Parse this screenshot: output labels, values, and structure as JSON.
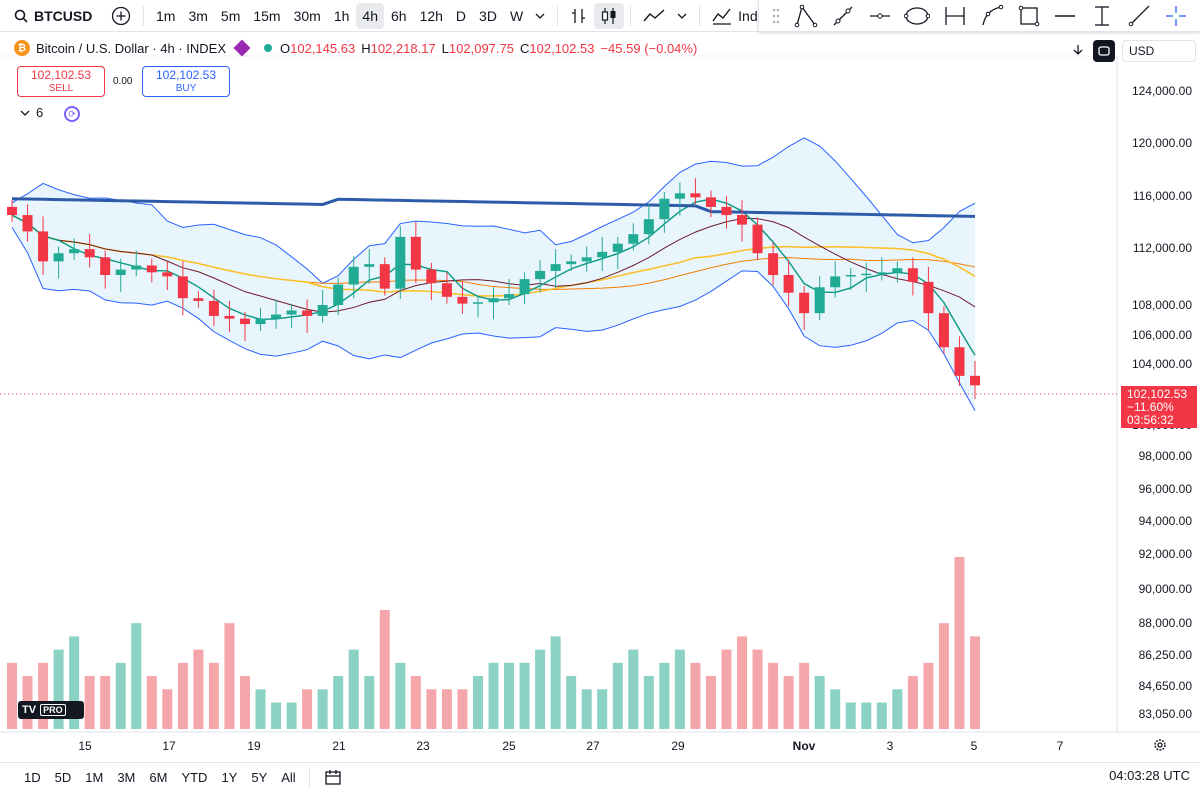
{
  "toolbar": {
    "symbol": "BTCUSD",
    "timeframes": [
      "1m",
      "3m",
      "5m",
      "15m",
      "30m",
      "1h",
      "4h",
      "6h",
      "12h",
      "D",
      "3D",
      "W"
    ],
    "active_timeframe": "4h",
    "indicators_label": "Indicato"
  },
  "legend": {
    "title": "Bitcoin / U.S. Dollar · 4h · INDEX",
    "o_label": "O",
    "o": "102,145.63",
    "h_label": "H",
    "h": "102,218.17",
    "l_label": "L",
    "l": "102,097.75",
    "c_label": "C",
    "c": "102,102.53",
    "change": "−45.59 (−0.04%)"
  },
  "trade": {
    "sell_price": "102,102.53",
    "sell_label": "SELL",
    "spread": "0.00",
    "buy_price": "102,102.53",
    "buy_label": "BUY"
  },
  "indicators_collapse": {
    "count": "6"
  },
  "currency": "USD",
  "price_axis": [
    "124,000.00",
    "120,000.00",
    "116,000.00",
    "112,000.00",
    "108,000.00",
    "106,000.00",
    "104,000.00",
    "100,000.00",
    "98,000.00",
    "96,000.00",
    "94,000.00",
    "92,000.00",
    "90,000.00",
    "88,000.00",
    "86,250.00",
    "84,650.00",
    "83,050.00"
  ],
  "price_tag": {
    "price": "102,102.53",
    "pct": "−11.60%",
    "countdown": "03:56:32"
  },
  "x_axis": [
    "15",
    "17",
    "19",
    "21",
    "23",
    "25",
    "27",
    "29",
    "Nov",
    "3",
    "5",
    "7"
  ],
  "ranges": [
    "1D",
    "5D",
    "1M",
    "3M",
    "6M",
    "YTD",
    "1Y",
    "5Y",
    "All"
  ],
  "clock": "04:03:28 UTC",
  "logo_text": "PRO",
  "colors": {
    "up": "#22ab94",
    "down": "#f23645",
    "ma_long": "#2e5ba8",
    "band": "#dbeefb"
  },
  "chart_data": {
    "type": "candlestick",
    "x_tick_labels": [
      "15",
      "17",
      "19",
      "21",
      "23",
      "25",
      "27",
      "29",
      "Nov",
      "3",
      "5",
      "7"
    ],
    "y_tick_labels": [
      "124,000.00",
      "120,000.00",
      "116,000.00",
      "112,000.00",
      "108,000.00",
      "106,000.00",
      "104,000.00",
      "100,000.00",
      "98,000.00",
      "96,000.00",
      "94,000.00",
      "92,000.00",
      "90,000.00",
      "88,000.00",
      "86,250.00",
      "84,650.00",
      "83,050.00"
    ],
    "close_series": [
      114600,
      113400,
      111200,
      111800,
      112100,
      111500,
      110200,
      110600,
      110900,
      110400,
      110100,
      108500,
      108300,
      107200,
      107000,
      106600,
      107000,
      107300,
      107600,
      107200,
      108000,
      109500,
      110800,
      111000,
      109200,
      113000,
      110600,
      109600,
      108600,
      108100,
      108200,
      108500,
      108800,
      109900,
      110500,
      111000,
      111200,
      111500,
      111900,
      112500,
      113200,
      114300,
      115800,
      116200,
      115900,
      115200,
      114600,
      113900,
      111800,
      110200,
      108900,
      107400,
      109300,
      110100,
      110200,
      110300,
      110400,
      110700,
      109700,
      107400,
      104900,
      102800,
      102102
    ],
    "volume_series": [
      5,
      4,
      5,
      6,
      7,
      4,
      4,
      5,
      8,
      4,
      3,
      5,
      6,
      5,
      8,
      4,
      3,
      2,
      2,
      3,
      3,
      4,
      6,
      4,
      9,
      5,
      4,
      3,
      3,
      3,
      4,
      5,
      5,
      5,
      6,
      7,
      4,
      3,
      3,
      5,
      6,
      4,
      5,
      6,
      5,
      4,
      6,
      7,
      6,
      5,
      4,
      5,
      4,
      3,
      2,
      2,
      2,
      3,
      4,
      5,
      8,
      13,
      7
    ]
  }
}
